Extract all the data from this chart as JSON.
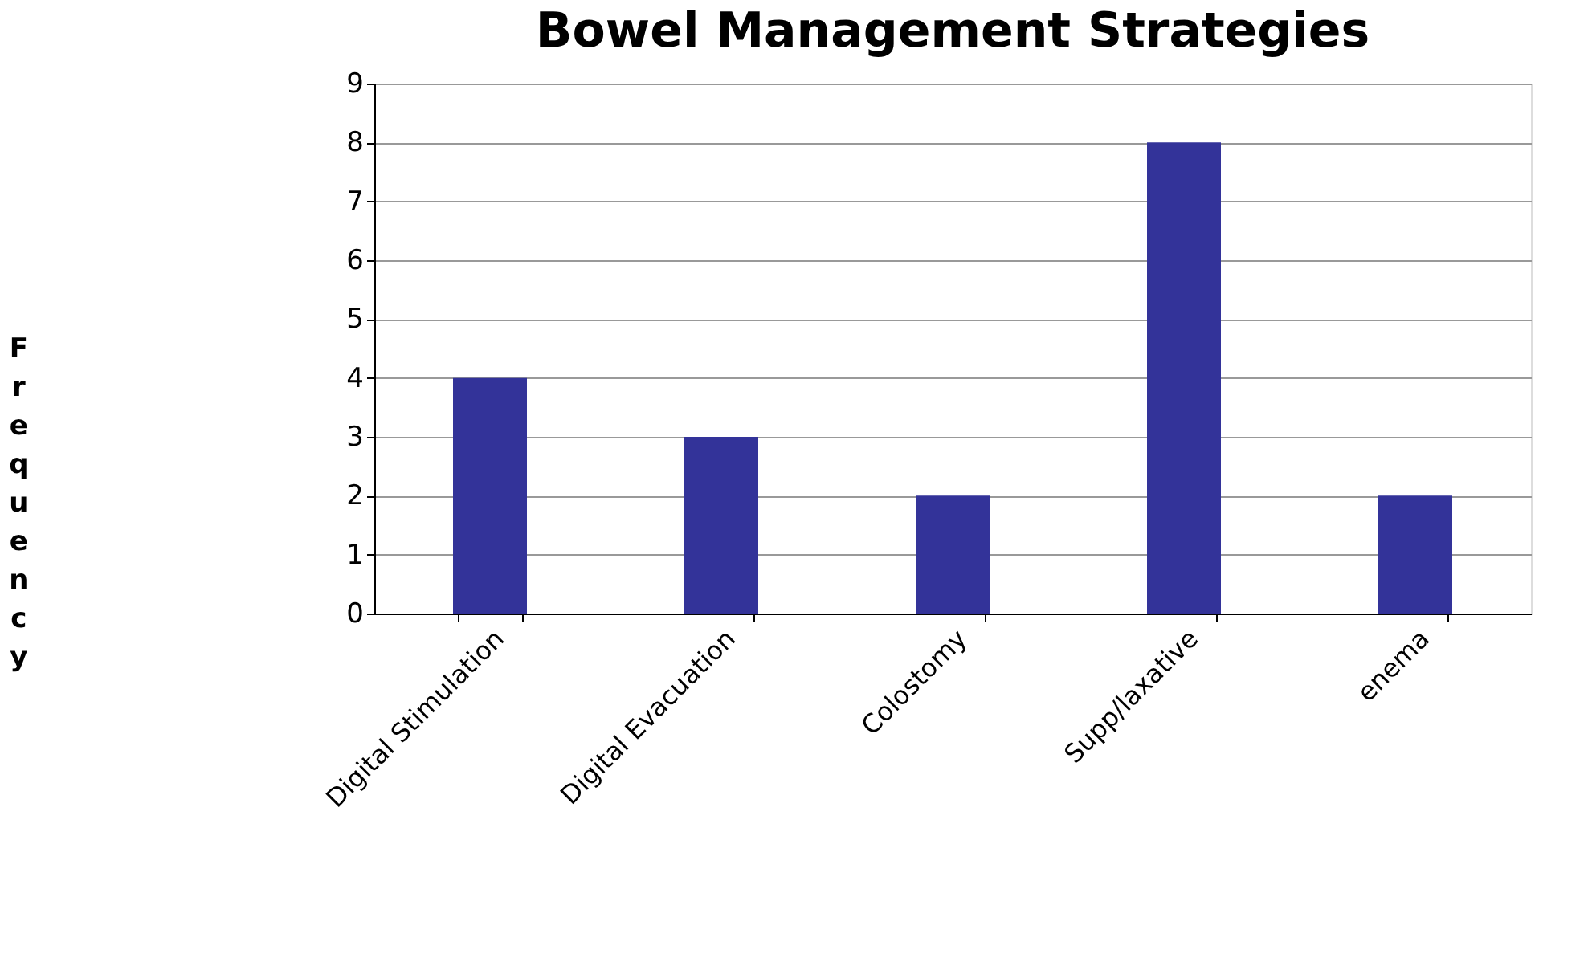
{
  "chart_data": {
    "type": "bar",
    "title": "Bowel Management Strategies",
    "ylabel": "Frequency",
    "categories": [
      "Digital Stimulation",
      "Digital Evacuation",
      "Colostomy",
      "Supp/laxative",
      "enema"
    ],
    "values": [
      4,
      3,
      2,
      8,
      2
    ],
    "color": "#333399",
    "ylim": [
      0,
      9
    ],
    "yticks": [
      0,
      1,
      2,
      3,
      4,
      5,
      6,
      7,
      8,
      9
    ],
    "grid": "y"
  }
}
